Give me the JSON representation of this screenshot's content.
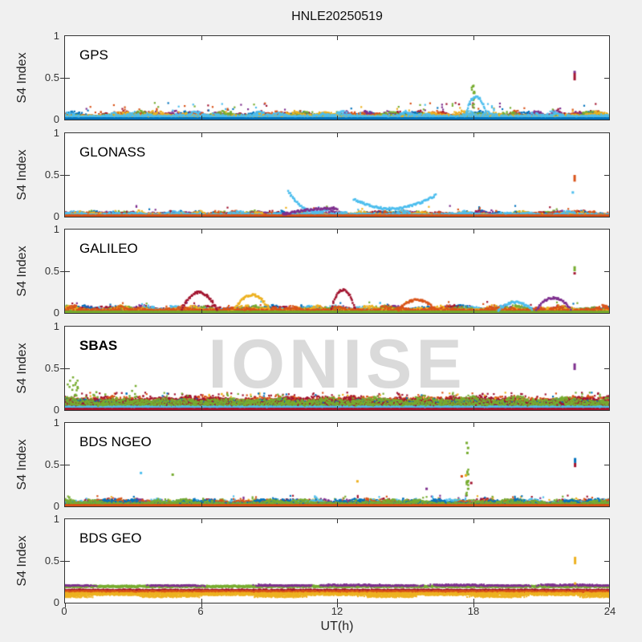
{
  "watermark": "IONISE",
  "chart_data": {
    "type": "scatter",
    "title": "HNLE20250519",
    "xlabel": "UT(h)",
    "ylabel": "S4 Index",
    "xlim": [
      0,
      24
    ],
    "ylim": [
      0,
      1
    ],
    "xticks": [
      0,
      6,
      12,
      18,
      24
    ],
    "yticks": [
      0,
      0.5,
      1
    ],
    "grid": false,
    "legend": "none",
    "background": "#f0f0f0",
    "axes_background": "#ffffff",
    "colors": {
      "blue": "#0072BD",
      "orange": "#D95319",
      "yellow": "#EDB120",
      "purple": "#7E2F8E",
      "green": "#77AC30",
      "cyan": "#4DBEEE",
      "darkred": "#A2142F"
    },
    "panels": [
      {
        "label": "GPS",
        "bold": false,
        "seed": 101,
        "noise": {
          "step": 0.022,
          "base": 0.045,
          "spread": 0.055,
          "peak": 0.2,
          "spike_p": 0.015,
          "colors": [
            "darkred",
            "blue",
            "purple",
            "orange",
            "green",
            "yellow",
            "cyan"
          ]
        },
        "hlines": [
          {
            "color": "blue",
            "y": 0.012,
            "jitter": 0.006,
            "density": 2
          }
        ],
        "features": [
          {
            "type": "cluster",
            "color": "green",
            "x": 18.0,
            "w": 0.14,
            "y0": 0.14,
            "y1": 0.42,
            "n": 15
          },
          {
            "type": "arc",
            "color": "cyan",
            "x0": 17.7,
            "y0": 0.09,
            "ym": 0.45,
            "x1": 18.55,
            "y1": 0.1
          },
          {
            "type": "dash",
            "color": "darkred",
            "x": 22.48,
            "y0": 0.47,
            "y1": 0.56
          },
          {
            "type": "dot",
            "color": "purple",
            "x": 22.48,
            "y": 0.57
          }
        ]
      },
      {
        "label": "GLONASS",
        "bold": false,
        "seed": 202,
        "noise": {
          "step": 0.03,
          "base": 0.028,
          "spread": 0.042,
          "peak": 0.13,
          "spike_p": 0.01,
          "colors": [
            "green",
            "darkred",
            "blue",
            "purple",
            "orange",
            "yellow",
            "cyan"
          ]
        },
        "hlines": [
          {
            "color": "orange",
            "y": 0.012,
            "jitter": 0.006,
            "density": 2
          }
        ],
        "features": [
          {
            "type": "arc",
            "color": "cyan",
            "x0": 9.85,
            "y0": 0.3,
            "ym": -0.05,
            "x1": 11.6,
            "y1": 0.095
          },
          {
            "type": "arc",
            "color": "cyan",
            "x0": 12.75,
            "y0": 0.21,
            "ym": -0.04,
            "x1": 16.35,
            "y1": 0.26
          },
          {
            "type": "arc",
            "color": "purple",
            "x0": 9.6,
            "y0": 0.03,
            "ym": 0.1,
            "x1": 12.0,
            "y1": 0.1
          },
          {
            "type": "dash",
            "color": "orange",
            "x": 22.48,
            "y0": 0.42,
            "y1": 0.5
          },
          {
            "type": "dot",
            "color": "cyan",
            "x": 22.4,
            "y": 0.29
          }
        ]
      },
      {
        "label": "GALILEO",
        "bold": false,
        "seed": 303,
        "noise": {
          "step": 0.025,
          "base": 0.04,
          "spread": 0.05,
          "peak": 0.14,
          "spike_p": 0.008,
          "colors": [
            "purple",
            "blue",
            "darkred",
            "cyan",
            "green",
            "yellow",
            "orange"
          ]
        },
        "hlines": [
          {
            "color": "green",
            "y": 0.012,
            "jitter": 0.006,
            "density": 2
          }
        ],
        "features": [
          {
            "type": "arc",
            "color": "darkred",
            "x0": 5.15,
            "y0": 0.05,
            "ym": 0.45,
            "x1": 6.7,
            "y1": 0.04
          },
          {
            "type": "arc",
            "color": "darkred",
            "x0": 11.75,
            "y0": 0.06,
            "ym": 0.5,
            "x1": 12.8,
            "y1": 0.05
          },
          {
            "type": "arc",
            "color": "yellow",
            "x0": 7.5,
            "y0": 0.05,
            "ym": 0.38,
            "x1": 9.0,
            "y1": 0.05
          },
          {
            "type": "arc",
            "color": "orange",
            "x0": 14.7,
            "y0": 0.04,
            "ym": 0.27,
            "x1": 16.3,
            "y1": 0.05
          },
          {
            "type": "arc",
            "color": "purple",
            "x0": 20.8,
            "y0": 0.04,
            "ym": 0.32,
            "x1": 22.3,
            "y1": 0.05
          },
          {
            "type": "arc",
            "color": "cyan",
            "x0": 19.1,
            "y0": 0.03,
            "ym": 0.22,
            "x1": 20.6,
            "y1": 0.04
          },
          {
            "type": "dash",
            "color": "green",
            "x": 22.48,
            "y0": 0.5,
            "y1": 0.56
          },
          {
            "type": "dot",
            "color": "darkred",
            "x": 22.48,
            "y": 0.475
          }
        ]
      },
      {
        "label": "SBAS",
        "bold": true,
        "seed": 404,
        "noise": {
          "step": 0.015,
          "base": 0.1,
          "spread": 0.05,
          "peak": 0.21,
          "spike_p": 0.02,
          "colors": [
            {
              "c": "darkred",
              "base": 0.1,
              "spread": 0.05
            },
            {
              "c": "orange",
              "base": 0.13,
              "spread": 0.035
            },
            {
              "c": "darkred",
              "base": 0.12,
              "spread": 0.045
            },
            {
              "c": "yellow",
              "base": 0.05,
              "spread": 0.03
            },
            {
              "c": "blue",
              "base": 0.09,
              "spread": 0.035
            },
            {
              "c": "darkred",
              "base": 0.08,
              "spread": 0.04
            },
            {
              "c": "green",
              "base": 0.11,
              "spread": 0.05
            }
          ]
        },
        "hlines": [
          {
            "color": "cyan",
            "y": 0.03,
            "jitter": 0.015,
            "density": 2
          },
          {
            "color": "darkred",
            "y": 0.012,
            "jitter": 0.006,
            "density": 2
          }
        ],
        "features": [
          {
            "type": "cluster",
            "color": "green",
            "x": 0.35,
            "w": 0.5,
            "y0": 0.06,
            "y1": 0.4,
            "n": 16
          },
          {
            "type": "cluster",
            "color": "green",
            "x": 1.6,
            "w": 0.7,
            "y0": 0.05,
            "y1": 0.22,
            "n": 10
          },
          {
            "type": "cluster",
            "color": "green",
            "x": 2.95,
            "w": 0.5,
            "y0": 0.08,
            "y1": 0.31,
            "n": 10
          },
          {
            "type": "dash",
            "color": "purple",
            "x": 22.48,
            "y0": 0.48,
            "y1": 0.56
          }
        ]
      },
      {
        "label": "BDS NGEO",
        "bold": false,
        "seed": 505,
        "noise": {
          "step": 0.022,
          "base": 0.04,
          "spread": 0.05,
          "peak": 0.13,
          "spike_p": 0.012,
          "colors": [
            "purple",
            "darkred",
            "yellow",
            "blue",
            "green",
            "cyan",
            "orange",
            "blue",
            "green"
          ]
        },
        "hlines": [
          {
            "color": "orange",
            "y": 0.012,
            "jitter": 0.006,
            "density": 2
          }
        ],
        "features": [
          {
            "type": "cluster",
            "color": "green",
            "x": 17.75,
            "w": 0.12,
            "y0": 0.1,
            "y1": 0.45,
            "n": 16
          },
          {
            "type": "dot",
            "color": "green",
            "x": 17.78,
            "y": 0.7
          },
          {
            "type": "dot",
            "color": "green",
            "x": 17.72,
            "y": 0.76
          },
          {
            "type": "dot",
            "color": "green",
            "x": 17.75,
            "y": 0.64
          },
          {
            "type": "dot",
            "color": "yellow",
            "x": 17.68,
            "y": 0.37
          },
          {
            "type": "dot",
            "color": "darkred",
            "x": 17.92,
            "y": 0.28
          },
          {
            "type": "dot",
            "color": "orange",
            "x": 17.5,
            "y": 0.36
          },
          {
            "type": "dot",
            "color": "cyan",
            "x": 3.35,
            "y": 0.4
          },
          {
            "type": "dot",
            "color": "green",
            "x": 4.75,
            "y": 0.38
          },
          {
            "type": "dot",
            "color": "yellow",
            "x": 12.9,
            "y": 0.3
          },
          {
            "type": "dot",
            "color": "purple",
            "x": 15.95,
            "y": 0.21
          },
          {
            "type": "dash",
            "color": "blue",
            "x": 22.5,
            "y0": 0.52,
            "y1": 0.58
          },
          {
            "type": "dash",
            "color": "darkred",
            "x": 22.5,
            "y0": 0.47,
            "y1": 0.52
          }
        ]
      },
      {
        "label": "BDS GEO",
        "bold": false,
        "seed": 606,
        "noise": null,
        "hlines": [
          {
            "color": "green",
            "y": 0.195,
            "jitter": 0.012,
            "density": 2
          },
          {
            "color": "purple",
            "y": 0.21,
            "jitter": 0.012,
            "density": 1,
            "patchy": true,
            "x0": 8.5,
            "x1": 24
          },
          {
            "color": "purple",
            "y": 0.205,
            "jitter": 0.008,
            "density": 1,
            "patchy": true
          },
          {
            "color": "darkred",
            "y": 0.152,
            "jitter": 0.008,
            "density": 1
          },
          {
            "color": "orange",
            "y": 0.132,
            "jitter": 0.012,
            "density": 2
          },
          {
            "color": "yellow",
            "y": 0.104,
            "jitter": 0.016,
            "density": 2
          },
          {
            "color": "yellow",
            "y": 0.075,
            "jitter": 0.012,
            "density": 1,
            "patchy": true
          }
        ],
        "features": [
          {
            "type": "dash",
            "color": "yellow",
            "x": 22.5,
            "y0": 0.46,
            "y1": 0.55
          },
          {
            "type": "dot",
            "color": "yellow",
            "x": 22.5,
            "y": 0.23
          }
        ]
      }
    ]
  }
}
